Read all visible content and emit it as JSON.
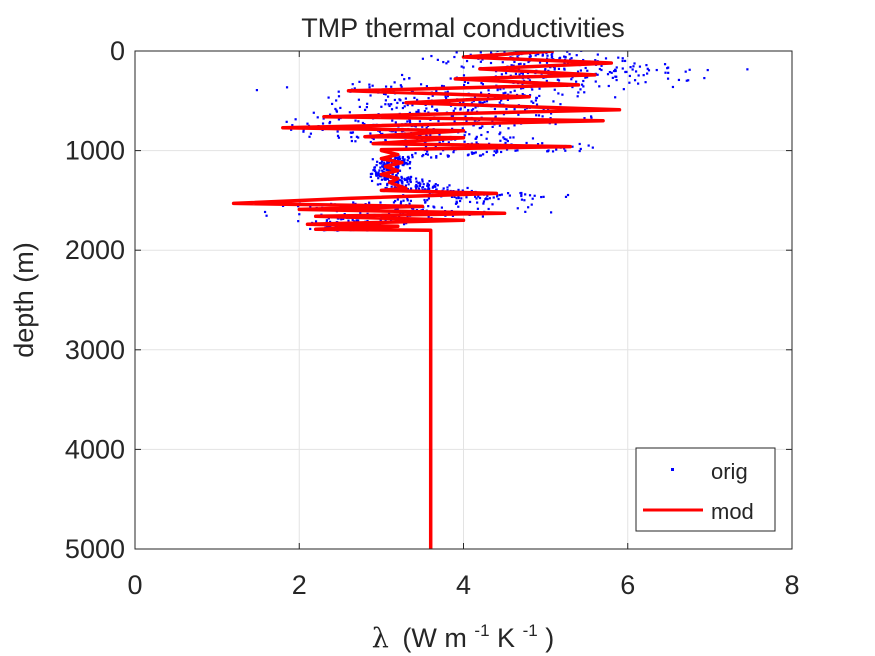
{
  "chart_data": {
    "type": "scatter",
    "title": "TMP thermal conductivities",
    "xlabel_symbol": "λ",
    "xlabel_unit_parts": [
      "(W m",
      "-1",
      "K",
      "-1",
      ")"
    ],
    "ylabel": "depth (m)",
    "xlim": [
      0,
      8
    ],
    "ylim": [
      0,
      5000
    ],
    "y_reversed": true,
    "xticks": [
      "0",
      "2",
      "4",
      "6",
      "8"
    ],
    "yticks": [
      "0",
      "1000",
      "2000",
      "3000",
      "4000",
      "5000"
    ],
    "grid": true,
    "legend_position": "bottom-right",
    "series": [
      {
        "name": "orig",
        "style": "points",
        "color": "#0000ff",
        "profile": [
          {
            "depth": 0,
            "lo": 3.9,
            "hi": 5.6
          },
          {
            "depth": 80,
            "lo": 3.2,
            "hi": 6.3
          },
          {
            "depth": 200,
            "lo": 3.8,
            "hi": 7.4
          },
          {
            "depth": 260,
            "lo": 3.0,
            "hi": 7.3
          },
          {
            "depth": 400,
            "lo": 1.6,
            "hi": 6.5
          },
          {
            "depth": 500,
            "lo": 2.2,
            "hi": 5.5
          },
          {
            "depth": 600,
            "lo": 1.9,
            "hi": 6.0
          },
          {
            "depth": 700,
            "lo": 1.5,
            "hi": 5.9
          },
          {
            "depth": 800,
            "lo": 1.3,
            "hi": 4.5
          },
          {
            "depth": 900,
            "lo": 2.0,
            "hi": 5.2
          },
          {
            "depth": 980,
            "lo": 3.1,
            "hi": 6.5
          },
          {
            "depth": 1080,
            "lo": 2.9,
            "hi": 3.4
          },
          {
            "depth": 1250,
            "lo": 2.8,
            "hi": 3.3
          },
          {
            "depth": 1380,
            "lo": 2.9,
            "hi": 4.2
          },
          {
            "depth": 1450,
            "lo": 3.3,
            "hi": 5.5
          },
          {
            "depth": 1540,
            "lo": 0.8,
            "hi": 5.0
          },
          {
            "depth": 1620,
            "lo": 1.5,
            "hi": 5.3
          },
          {
            "depth": 1700,
            "lo": 1.8,
            "hi": 3.4
          },
          {
            "depth": 1800,
            "lo": 2.0,
            "hi": 3.3
          }
        ]
      },
      {
        "name": "mod",
        "style": "line",
        "color": "#ff0000",
        "points": [
          [
            5.1,
            0
          ],
          [
            4.0,
            60
          ],
          [
            5.8,
            120
          ],
          [
            4.2,
            180
          ],
          [
            5.6,
            240
          ],
          [
            3.9,
            280
          ],
          [
            5.4,
            340
          ],
          [
            2.6,
            400
          ],
          [
            4.8,
            460
          ],
          [
            3.3,
            520
          ],
          [
            5.9,
            590
          ],
          [
            2.3,
            660
          ],
          [
            5.7,
            700
          ],
          [
            1.8,
            770
          ],
          [
            4.0,
            800
          ],
          [
            2.8,
            860
          ],
          [
            4.0,
            870
          ],
          [
            2.9,
            930
          ],
          [
            5.3,
            960
          ],
          [
            3.0,
            990
          ],
          [
            3.0,
            1000
          ],
          [
            3.2,
            1040
          ],
          [
            3.0,
            1080
          ],
          [
            3.25,
            1120
          ],
          [
            3.05,
            1160
          ],
          [
            3.2,
            1200
          ],
          [
            3.0,
            1240
          ],
          [
            3.2,
            1280
          ],
          [
            3.1,
            1320
          ],
          [
            3.3,
            1380
          ],
          [
            3.0,
            1400
          ],
          [
            4.4,
            1430
          ],
          [
            2.6,
            1480
          ],
          [
            1.2,
            1530
          ],
          [
            3.5,
            1560
          ],
          [
            2.0,
            1590
          ],
          [
            4.5,
            1630
          ],
          [
            2.2,
            1660
          ],
          [
            4.0,
            1700
          ],
          [
            2.1,
            1740
          ],
          [
            3.2,
            1760
          ],
          [
            2.2,
            1790
          ],
          [
            3.6,
            1800
          ],
          [
            3.6,
            5000
          ]
        ]
      }
    ]
  }
}
